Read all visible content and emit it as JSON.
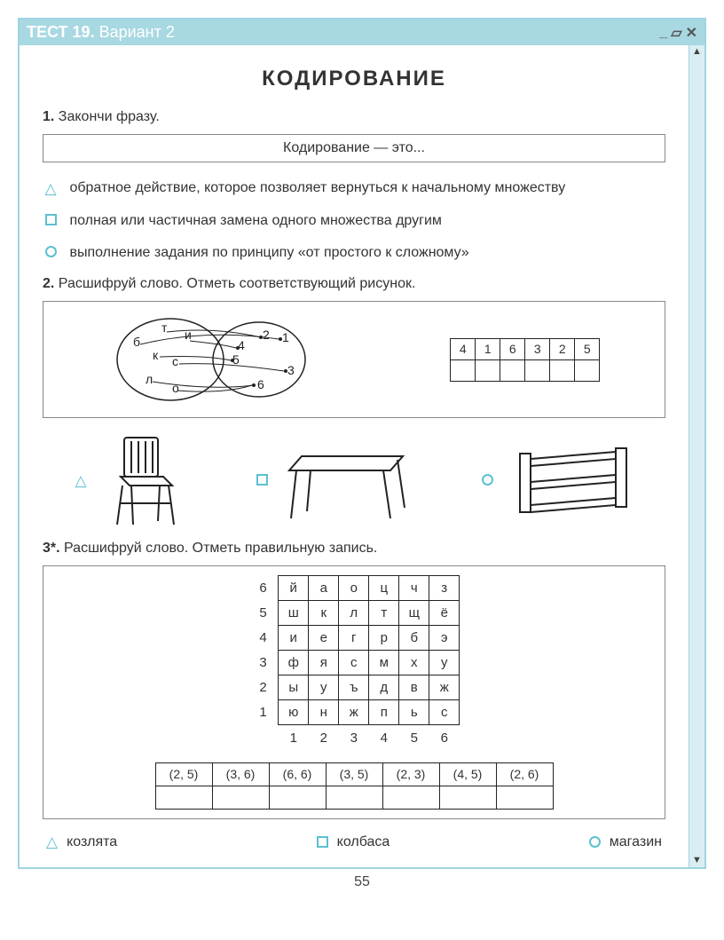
{
  "window": {
    "title_prefix": "ТЕСТ 19.",
    "title_variant": "Вариант 2",
    "accent_color": "#a8d8e2",
    "border_color": "#9fd4e0"
  },
  "page_number": "55",
  "heading": "КОДИРОВАНИЕ",
  "q1": {
    "number": "1.",
    "prompt": "Закончи фразу.",
    "boxed": "Кодирование — это...",
    "options": [
      {
        "marker": "triangle",
        "text": "обратное действие, которое позволяет вернуться к начальному множеству"
      },
      {
        "marker": "square",
        "text": "полная или частичная замена одного множества другим"
      },
      {
        "marker": "circle",
        "text": "выполнение задания по принципу «от простого к сложному»"
      }
    ]
  },
  "q2": {
    "number": "2.",
    "prompt": "Расшифруй слово. Отметь соответствующий рисунок.",
    "diagram_letters": [
      "б",
      "т",
      "и",
      "к",
      "с",
      "л",
      "о"
    ],
    "diagram_numbers": [
      1,
      2,
      3,
      4,
      5,
      6
    ],
    "code_table_top": [
      "4",
      "1",
      "6",
      "3",
      "2",
      "5"
    ],
    "pictures": [
      {
        "marker": "triangle",
        "name": "chair"
      },
      {
        "marker": "square",
        "name": "table"
      },
      {
        "marker": "circle",
        "name": "shelf"
      }
    ]
  },
  "q3": {
    "number": "3*.",
    "prompt": "Расшифруй слово. Отметь правильную запись.",
    "row_labels": [
      "6",
      "5",
      "4",
      "3",
      "2",
      "1"
    ],
    "col_labels": [
      "1",
      "2",
      "3",
      "4",
      "5",
      "6"
    ],
    "grid": [
      [
        "й",
        "а",
        "о",
        "ц",
        "ч",
        "з"
      ],
      [
        "ш",
        "к",
        "л",
        "т",
        "щ",
        "ё"
      ],
      [
        "и",
        "е",
        "г",
        "р",
        "б",
        "э"
      ],
      [
        "ф",
        "я",
        "с",
        "м",
        "х",
        "у"
      ],
      [
        "ы",
        "у",
        "ъ",
        "д",
        "в",
        "ж"
      ],
      [
        "ю",
        "н",
        "ж",
        "п",
        "ь",
        "с"
      ]
    ],
    "coords": [
      "(2, 5)",
      "(3, 6)",
      "(6, 6)",
      "(3, 5)",
      "(2, 3)",
      "(4, 5)",
      "(2, 6)"
    ],
    "options": [
      {
        "marker": "triangle",
        "text": "козлята"
      },
      {
        "marker": "square",
        "text": "колбаса"
      },
      {
        "marker": "circle",
        "text": "магазин"
      }
    ]
  }
}
